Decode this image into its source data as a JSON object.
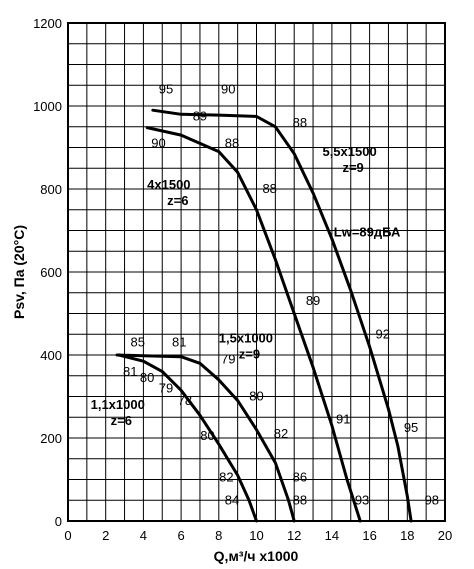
{
  "chart_data": {
    "type": "line",
    "xlabel": "Q,м³/ч x1000",
    "ylabel": "Psv, Па (20°С)",
    "xlim": [
      0,
      20
    ],
    "ylim": [
      0,
      1200
    ],
    "x_ticks": [
      "0",
      "2",
      "4",
      "6",
      "8",
      "10",
      "12",
      "14",
      "16",
      "18",
      "20"
    ],
    "y_ticks": [
      "0",
      "200",
      "400",
      "600",
      "800",
      "1000",
      "1200"
    ],
    "grid": true,
    "note": "Lw=89дБА",
    "curves": [
      {
        "label_lines": [
          "5,5x1500",
          "z=9"
        ],
        "points": [
          [
            4.5,
            990
          ],
          [
            6,
            980
          ],
          [
            8,
            978
          ],
          [
            10,
            975
          ],
          [
            11,
            950
          ],
          [
            12,
            885
          ],
          [
            13,
            790
          ],
          [
            14,
            680
          ],
          [
            15,
            555
          ],
          [
            16,
            420
          ],
          [
            17,
            270
          ],
          [
            17.5,
            180
          ],
          [
            18,
            60
          ],
          [
            18.2,
            0
          ]
        ],
        "efficiency": [
          "95",
          "90",
          "88",
          "92",
          "95",
          "98"
        ]
      },
      {
        "label_lines": [
          "4x1500",
          "z=6"
        ],
        "points": [
          [
            4.2,
            948
          ],
          [
            6,
            930
          ],
          [
            8,
            890
          ],
          [
            9,
            840
          ],
          [
            10,
            750
          ],
          [
            11,
            630
          ],
          [
            12,
            500
          ],
          [
            13,
            370
          ],
          [
            14,
            230
          ],
          [
            14.8,
            100
          ],
          [
            15.5,
            0
          ]
        ],
        "efficiency": [
          "90",
          "89",
          "88",
          "88",
          "89",
          "91",
          "93"
        ]
      },
      {
        "label_lines": [
          "1,5x1000",
          "z=9"
        ],
        "points": [
          [
            2.6,
            400
          ],
          [
            4,
            398
          ],
          [
            6,
            396
          ],
          [
            7,
            380
          ],
          [
            8,
            340
          ],
          [
            9,
            290
          ],
          [
            10,
            220
          ],
          [
            11,
            140
          ],
          [
            11.7,
            50
          ],
          [
            12,
            0
          ]
        ],
        "efficiency": [
          "85",
          "81",
          "79",
          "80",
          "82",
          "86",
          "88"
        ]
      },
      {
        "label_lines": [
          "1,1x1000",
          "z=6"
        ],
        "points": [
          [
            2.7,
            400
          ],
          [
            4,
            385
          ],
          [
            5,
            360
          ],
          [
            6,
            315
          ],
          [
            7,
            255
          ],
          [
            8,
            185
          ],
          [
            9,
            110
          ],
          [
            9.6,
            50
          ],
          [
            10,
            0
          ]
        ],
        "efficiency": [
          "81",
          "80",
          "79",
          "78",
          "80",
          "82",
          "84"
        ]
      }
    ]
  }
}
